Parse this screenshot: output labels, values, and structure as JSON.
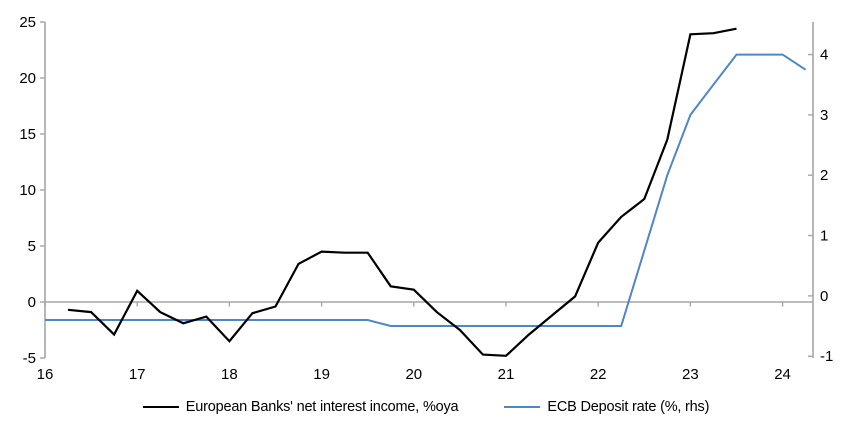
{
  "chart_data": {
    "type": "line",
    "title": "",
    "grid": "zero-line-only",
    "legend_position": "bottom-center",
    "axis_color": "#a6a6a6",
    "x_axis": {
      "ticks": [
        16,
        17,
        18,
        19,
        20,
        21,
        22,
        23,
        24
      ],
      "range": [
        16,
        24.33
      ]
    },
    "left_axis": {
      "ticks": [
        25,
        20,
        15,
        10,
        5,
        0,
        -5
      ],
      "range": [
        -5,
        25
      ]
    },
    "right_axis": {
      "ticks": [
        4,
        3,
        2,
        1,
        0,
        -1
      ],
      "range": [
        -1.03,
        4.54
      ]
    },
    "series": [
      {
        "name": "European Banks' net interest income, %oya",
        "axis": "left",
        "color": "#000000",
        "width": 2.2,
        "x": [
          16.25,
          16.5,
          16.75,
          17.0,
          17.25,
          17.5,
          17.75,
          18.0,
          18.25,
          18.5,
          18.75,
          19.0,
          19.25,
          19.5,
          19.75,
          20.0,
          20.25,
          20.5,
          20.75,
          21.0,
          21.25,
          21.5,
          21.75,
          22.0,
          22.25,
          22.5,
          22.75,
          23.0,
          23.25,
          23.5
        ],
        "values": [
          -0.7,
          -0.9,
          -2.9,
          1.0,
          -0.9,
          -1.9,
          -1.3,
          -3.5,
          -1.0,
          -0.4,
          3.4,
          4.5,
          4.4,
          4.4,
          1.4,
          1.1,
          -0.9,
          -2.5,
          -4.7,
          -4.8,
          -2.9,
          -1.2,
          0.5,
          5.3,
          7.6,
          9.2,
          14.5,
          23.9,
          24.0,
          24.4
        ]
      },
      {
        "name": "ECB Deposit rate (%, rhs)",
        "axis": "right",
        "color": "#4e86c6",
        "width": 2,
        "x": [
          16.0,
          16.25,
          16.5,
          16.75,
          17.0,
          17.25,
          17.5,
          17.75,
          18.0,
          18.25,
          18.5,
          18.75,
          19.0,
          19.25,
          19.5,
          19.75,
          20.0,
          20.25,
          20.5,
          20.75,
          21.0,
          21.25,
          21.5,
          21.75,
          22.0,
          22.25,
          22.5,
          22.75,
          23.0,
          23.25,
          23.5,
          23.75,
          24.0,
          24.25
        ],
        "values": [
          -0.4,
          -0.4,
          -0.4,
          -0.4,
          -0.4,
          -0.4,
          -0.4,
          -0.4,
          -0.4,
          -0.4,
          -0.4,
          -0.4,
          -0.4,
          -0.4,
          -0.4,
          -0.5,
          -0.5,
          -0.5,
          -0.5,
          -0.5,
          -0.5,
          -0.5,
          -0.5,
          -0.5,
          -0.5,
          -0.5,
          0.75,
          2.0,
          3.0,
          3.5,
          4.0,
          4.0,
          4.0,
          3.75
        ]
      }
    ]
  }
}
